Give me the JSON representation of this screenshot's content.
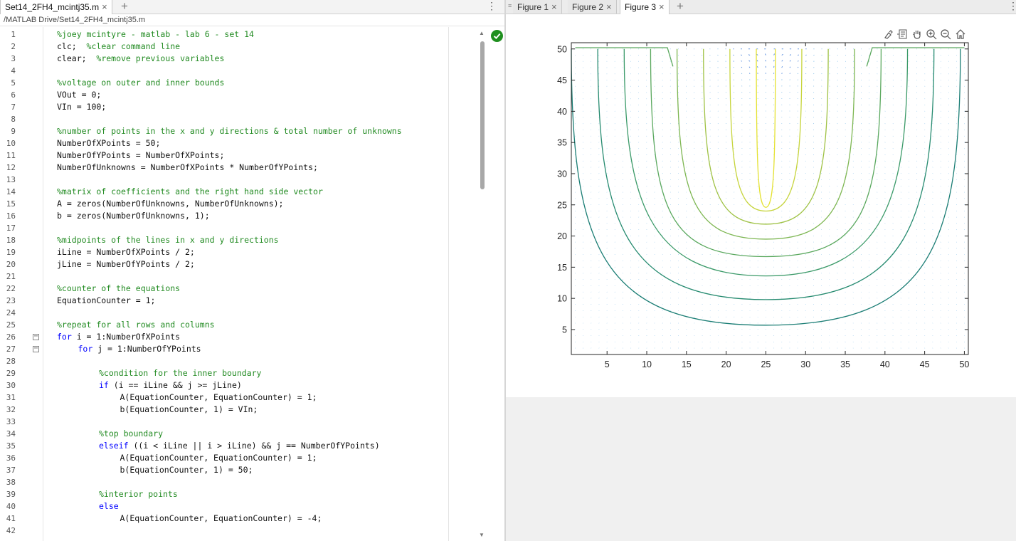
{
  "editor": {
    "tab_label": "Set14_2FH4_mcintj35.m",
    "path": "/MATLAB Drive/Set14_2FH4_mcintj35.m",
    "lines": [
      {
        "n": "1",
        "t": "%joey mcintyre - matlab - lab 6 - set 14",
        "k": "c",
        "i": 0
      },
      {
        "n": "2",
        "t": "clc;  %clear command line",
        "k": "m",
        "i": 0
      },
      {
        "n": "3",
        "t": "clear;  %remove previous variables",
        "k": "m",
        "i": 0
      },
      {
        "n": "4",
        "t": "",
        "k": "p",
        "i": 0
      },
      {
        "n": "5",
        "t": "%voltage on outer and inner bounds",
        "k": "c",
        "i": 0
      },
      {
        "n": "6",
        "t": "VOut = 0;",
        "k": "p",
        "i": 0
      },
      {
        "n": "7",
        "t": "VIn = 100;",
        "k": "p",
        "i": 0
      },
      {
        "n": "8",
        "t": "",
        "k": "p",
        "i": 0
      },
      {
        "n": "9",
        "t": "%number of points in the x and y directions & total number of unknowns",
        "k": "c",
        "i": 0
      },
      {
        "n": "10",
        "t": "NumberOfXPoints = 50;",
        "k": "p",
        "i": 0
      },
      {
        "n": "11",
        "t": "NumberOfYPoints = NumberOfXPoints;",
        "k": "p",
        "i": 0
      },
      {
        "n": "12",
        "t": "NumberOfUnknowns = NumberOfXPoints * NumberOfYPoints;",
        "k": "p",
        "i": 0
      },
      {
        "n": "13",
        "t": "",
        "k": "p",
        "i": 0
      },
      {
        "n": "14",
        "t": "%matrix of coefficients and the right hand side vector",
        "k": "c",
        "i": 0
      },
      {
        "n": "15",
        "t": "A = zeros(NumberOfUnknowns, NumberOfUnknowns);",
        "k": "p",
        "i": 0
      },
      {
        "n": "16",
        "t": "b = zeros(NumberOfUnknowns, 1);",
        "k": "p",
        "i": 0
      },
      {
        "n": "17",
        "t": "",
        "k": "p",
        "i": 0
      },
      {
        "n": "18",
        "t": "%midpoints of the lines in x and y directions",
        "k": "c",
        "i": 0
      },
      {
        "n": "19",
        "t": "iLine = NumberOfXPoints / 2;",
        "k": "p",
        "i": 0
      },
      {
        "n": "20",
        "t": "jLine = NumberOfYPoints / 2;",
        "k": "p",
        "i": 0
      },
      {
        "n": "21",
        "t": "",
        "k": "p",
        "i": 0
      },
      {
        "n": "22",
        "t": "%counter of the equations",
        "k": "c",
        "i": 0
      },
      {
        "n": "23",
        "t": "EquationCounter = 1;",
        "k": "p",
        "i": 0
      },
      {
        "n": "24",
        "t": "",
        "k": "p",
        "i": 0
      },
      {
        "n": "25",
        "t": "%repeat for all rows and columns",
        "k": "c",
        "i": 0
      },
      {
        "n": "26",
        "t": "for i = 1:NumberOfXPoints",
        "k": "kw",
        "kw": "for",
        "i": 0,
        "fold": "−"
      },
      {
        "n": "27",
        "t": "for j = 1:NumberOfYPoints",
        "k": "kw",
        "kw": "for",
        "i": 1,
        "fold": "−"
      },
      {
        "n": "28",
        "t": "",
        "k": "p",
        "i": 0
      },
      {
        "n": "29",
        "t": "%condition for the inner boundary",
        "k": "c",
        "i": 2
      },
      {
        "n": "30",
        "t": "if (i == iLine && j >= jLine)",
        "k": "kw",
        "kw": "if",
        "i": 2
      },
      {
        "n": "31",
        "t": "A(EquationCounter, EquationCounter) = 1;",
        "k": "p",
        "i": 3
      },
      {
        "n": "32",
        "t": "b(EquationCounter, 1) = VIn;",
        "k": "p",
        "i": 3
      },
      {
        "n": "33",
        "t": "",
        "k": "p",
        "i": 0
      },
      {
        "n": "34",
        "t": "%top boundary",
        "k": "c",
        "i": 2
      },
      {
        "n": "35",
        "t": "elseif ((i < iLine || i > iLine) && j == NumberOfYPoints)",
        "k": "kw",
        "kw": "elseif",
        "i": 2
      },
      {
        "n": "36",
        "t": "A(EquationCounter, EquationCounter) = 1;",
        "k": "p",
        "i": 3
      },
      {
        "n": "37",
        "t": "b(EquationCounter, 1) = 50;",
        "k": "p",
        "i": 3
      },
      {
        "n": "38",
        "t": "",
        "k": "p",
        "i": 0
      },
      {
        "n": "39",
        "t": "%interior points",
        "k": "c",
        "i": 2
      },
      {
        "n": "40",
        "t": "else",
        "k": "kw",
        "kw": "else",
        "i": 2
      },
      {
        "n": "41",
        "t": "A(EquationCounter, EquationCounter) = -4;",
        "k": "p",
        "i": 3
      },
      {
        "n": "42",
        "t": "",
        "k": "p",
        "i": 0
      }
    ]
  },
  "figures": {
    "tabs": [
      {
        "label": "Figure 1",
        "active": false
      },
      {
        "label": "Figure 2",
        "active": false
      },
      {
        "label": "Figure 3",
        "active": true
      }
    ],
    "toolbar_icons": [
      "brush-icon",
      "data-tips-icon",
      "pan-icon",
      "zoom-in-icon",
      "zoom-out-icon",
      "home-icon"
    ]
  },
  "chart_data": {
    "type": "contour",
    "overlay": "quiver",
    "x_ticks": [
      5,
      10,
      15,
      20,
      25,
      30,
      35,
      40,
      45,
      50
    ],
    "y_ticks": [
      5,
      10,
      15,
      20,
      25,
      30,
      35,
      40,
      45,
      50
    ],
    "xlim": [
      0.5,
      50.5
    ],
    "ylim": [
      1,
      51
    ],
    "colormap": "parula",
    "nested_levels": [
      {
        "bottom_y": 5.7,
        "color": "#1a7d74"
      },
      {
        "bottom_y": 9.8,
        "color": "#268b70"
      },
      {
        "bottom_y": 13.6,
        "color": "#3b9a69"
      },
      {
        "bottom_y": 16.7,
        "color": "#5aa85e"
      },
      {
        "bottom_y": 19.5,
        "color": "#7db651"
      },
      {
        "bottom_y": 21.9,
        "color": "#9fc245"
      },
      {
        "bottom_y": 24.0,
        "color": "#c6d43b"
      },
      {
        "bottom_y": 24.6,
        "color": "#e5e233"
      }
    ]
  }
}
